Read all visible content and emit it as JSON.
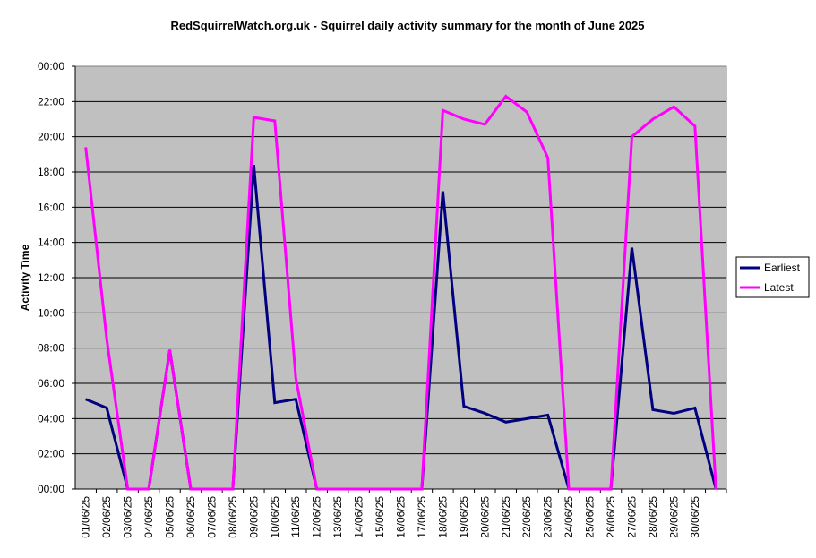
{
  "chart_data": {
    "type": "line",
    "title": "RedSquirrelWatch.org.uk - Squirrel daily activity summary for the month of June 2025",
    "xlabel": "",
    "ylabel": "Activity Time",
    "ylim": [
      0,
      24
    ],
    "yticks": [
      "00:00",
      "02:00",
      "04:00",
      "06:00",
      "08:00",
      "10:00",
      "12:00",
      "14:00",
      "16:00",
      "18:00",
      "20:00",
      "22:00",
      "00:00"
    ],
    "grid": true,
    "legend_position": "right",
    "categories": [
      "01/06/25",
      "02/06/25",
      "03/06/25",
      "04/06/25",
      "05/06/25",
      "06/06/25",
      "07/06/25",
      "08/06/25",
      "09/06/25",
      "10/06/25",
      "11/06/25",
      "12/06/25",
      "13/06/25",
      "14/06/25",
      "15/06/25",
      "16/06/25",
      "17/06/25",
      "18/06/25",
      "19/06/25",
      "20/06/25",
      "21/06/25",
      "22/06/25",
      "23/06/25",
      "24/06/25",
      "25/06/25",
      "26/06/25",
      "27/06/25",
      "28/06/25",
      "29/06/25",
      "30/06/25",
      ""
    ],
    "series": [
      {
        "name": "Earliest",
        "color": "#000080",
        "values": [
          5.1,
          4.6,
          0,
          0,
          7.9,
          0,
          0,
          0,
          18.4,
          4.9,
          5.1,
          0,
          0,
          0,
          0,
          0,
          0,
          16.9,
          4.7,
          4.3,
          3.8,
          4.0,
          4.2,
          0,
          0,
          0,
          13.7,
          4.5,
          4.3,
          4.6,
          0
        ]
      },
      {
        "name": "Latest",
        "color": "#ff00ff",
        "values": [
          19.4,
          8.5,
          0,
          0,
          7.9,
          0,
          0,
          0,
          21.1,
          20.9,
          6.3,
          0,
          0,
          0,
          0,
          0,
          0,
          21.5,
          21.0,
          20.7,
          22.3,
          21.4,
          18.8,
          0,
          0,
          0,
          20.0,
          21.0,
          21.7,
          20.6,
          0
        ]
      }
    ]
  }
}
